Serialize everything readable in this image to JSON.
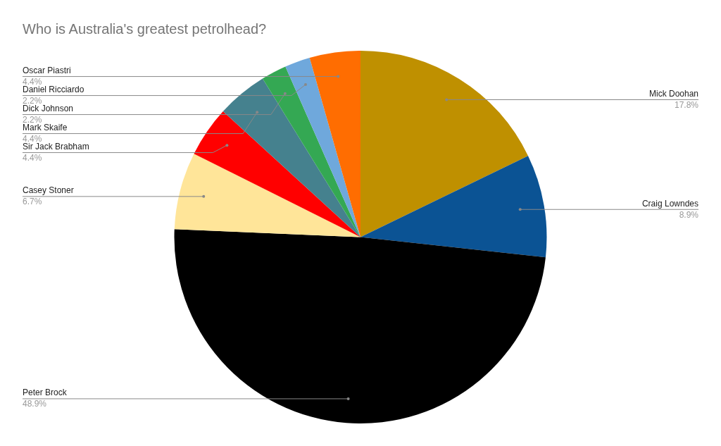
{
  "chart_data": {
    "type": "pie",
    "title": "Who is Australia's greatest petrolhead?",
    "categories": [
      "Mick Doohan",
      "Craig Lowndes",
      "Peter Brock",
      "Casey Stoner",
      "Sir Jack Brabham",
      "Mark Skaife",
      "Dick Johnson",
      "Daniel Ricciardo",
      "Oscar Piastri"
    ],
    "values": [
      17.8,
      8.9,
      48.9,
      6.7,
      4.4,
      4.4,
      2.2,
      2.2,
      4.4
    ],
    "value_labels": [
      "17.8%",
      "8.9%",
      "48.9%",
      "6.7%",
      "4.4%",
      "4.4%",
      "2.2%",
      "2.2%",
      "4.4%"
    ],
    "colors": [
      "#bf9000",
      "#0b5394",
      "#000000",
      "#ffe599",
      "#ff0000",
      "#45818e",
      "#34a853",
      "#6fa8dc",
      "#ff6d01"
    ],
    "legend": false
  }
}
